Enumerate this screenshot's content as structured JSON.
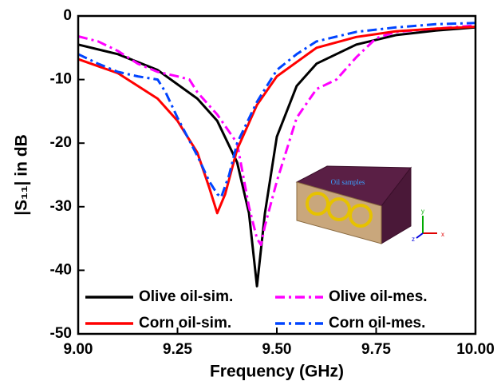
{
  "chart_data": {
    "type": "line",
    "xlabel": "Frequency (GHz)",
    "ylabel": "|S₁₁| in dB",
    "xlim": [
      9,
      10
    ],
    "ylim": [
      -50,
      0
    ],
    "xticks": [
      {
        "value": 9,
        "label": "9.00"
      },
      {
        "value": 9.25,
        "label": "9.25"
      },
      {
        "value": 9.5,
        "label": "9.50"
      },
      {
        "value": 9.75,
        "label": "9.75"
      },
      {
        "value": 10,
        "label": "10.00"
      }
    ],
    "yticks": [
      0,
      -10,
      -20,
      -30,
      -40,
      -50
    ],
    "legend_loc": "lower center",
    "annotations": [
      "Oil samples",
      "x",
      "y",
      "z"
    ],
    "series": [
      {
        "name": "Olive oil-sim.",
        "color": "#000000",
        "style": "solid",
        "x": [
          9.0,
          9.1,
          9.2,
          9.3,
          9.35,
          9.4,
          9.43,
          9.45,
          9.47,
          9.5,
          9.55,
          9.6,
          9.7,
          9.8,
          9.9,
          10.0
        ],
        "values": [
          -4.5,
          -6,
          -8.5,
          -13,
          -16.5,
          -23,
          -31,
          -42.5,
          -31,
          -19,
          -11,
          -7.5,
          -4.5,
          -3,
          -2.3,
          -1.8
        ]
      },
      {
        "name": "Olive oil-mes.",
        "color": "#ff00ff",
        "style": "dashdot",
        "x": [
          9.0,
          9.05,
          9.1,
          9.15,
          9.2,
          9.25,
          9.28,
          9.3,
          9.35,
          9.4,
          9.43,
          9.45,
          9.46,
          9.47,
          9.5,
          9.55,
          9.6,
          9.65,
          9.7,
          9.75,
          9.8,
          9.9,
          10.0
        ],
        "values": [
          -3.2,
          -4,
          -5.5,
          -7.5,
          -8.8,
          -9.5,
          -10,
          -12,
          -15.5,
          -20,
          -30,
          -35,
          -36,
          -33,
          -26,
          -16,
          -11.5,
          -10,
          -6.5,
          -3.5,
          -2.5,
          -2,
          -1.5
        ]
      },
      {
        "name": "Corn oil-sim.",
        "color": "#ff0000",
        "style": "solid",
        "x": [
          9.0,
          9.1,
          9.2,
          9.25,
          9.3,
          9.33,
          9.35,
          9.37,
          9.4,
          9.45,
          9.5,
          9.6,
          9.7,
          9.8,
          9.9,
          10.0
        ],
        "values": [
          -6.8,
          -9,
          -13,
          -16.5,
          -21.5,
          -27,
          -31,
          -28,
          -21,
          -14,
          -9.5,
          -5,
          -3.3,
          -2.4,
          -2,
          -1.7
        ]
      },
      {
        "name": "Corn oil-mes.",
        "color": "#0044ff",
        "style": "dashdot",
        "x": [
          9.0,
          9.05,
          9.1,
          9.15,
          9.2,
          9.22,
          9.25,
          9.3,
          9.33,
          9.35,
          9.36,
          9.38,
          9.4,
          9.45,
          9.5,
          9.55,
          9.6,
          9.7,
          9.8,
          9.9,
          10.0
        ],
        "values": [
          -6,
          -7.5,
          -8.8,
          -9.5,
          -10,
          -12,
          -16,
          -22,
          -26,
          -28,
          -28.5,
          -25,
          -20,
          -13.5,
          -8.5,
          -6,
          -4,
          -2.5,
          -1.8,
          -1.3,
          -1.1
        ]
      }
    ]
  }
}
